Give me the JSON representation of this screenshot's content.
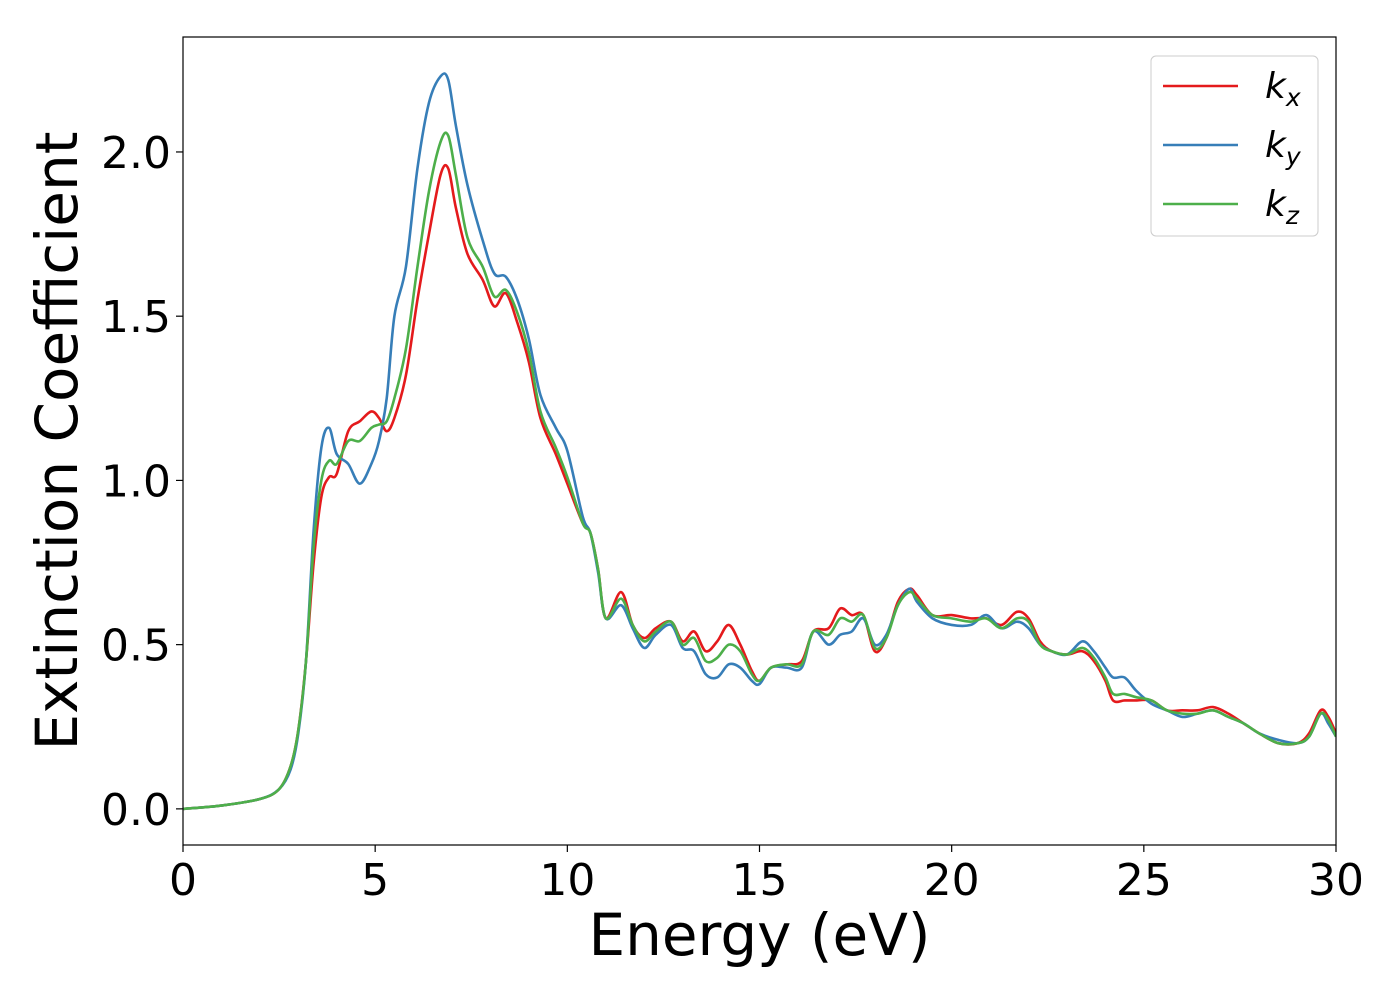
{
  "chart_data": {
    "type": "line",
    "title": "",
    "xlabel": "Energy (eV)",
    "ylabel": "Extinction Coefficient",
    "xlim": [
      0,
      30
    ],
    "ylim": [
      -0.11,
      2.35
    ],
    "xticks": [
      0,
      5,
      10,
      15,
      20,
      25,
      30
    ],
    "yticks": [
      0.0,
      0.5,
      1.0,
      1.5,
      2.0
    ],
    "xtick_labels": [
      "0",
      "5",
      "10",
      "15",
      "20",
      "25",
      "30"
    ],
    "ytick_labels": [
      "0.0",
      "0.5",
      "1.0",
      "1.5",
      "2.0"
    ],
    "grid": false,
    "legend_position": "top-right",
    "series": [
      {
        "name": "k_x",
        "label_base": "k",
        "label_sub": "x",
        "color": "#e41a1c",
        "x": [
          0,
          1,
          2,
          2.5,
          2.8,
          3.0,
          3.2,
          3.4,
          3.6,
          3.8,
          4.0,
          4.3,
          4.6,
          4.9,
          5.1,
          5.3,
          5.5,
          5.8,
          6.1,
          6.4,
          6.7,
          6.9,
          7.1,
          7.4,
          7.8,
          8.1,
          8.4,
          8.7,
          9.0,
          9.3,
          9.7,
          10.0,
          10.4,
          10.6,
          10.8,
          11.0,
          11.4,
          11.7,
          12.0,
          12.3,
          12.7,
          13.0,
          13.3,
          13.6,
          13.9,
          14.2,
          14.5,
          14.8,
          15.0,
          15.3,
          15.7,
          16.1,
          16.4,
          16.8,
          17.1,
          17.4,
          17.7,
          18.0,
          18.3,
          18.6,
          18.9,
          19.1,
          19.5,
          20.0,
          20.5,
          20.9,
          21.3,
          21.7,
          22.0,
          22.3,
          22.6,
          23.0,
          23.4,
          23.7,
          24.0,
          24.2,
          24.5,
          24.8,
          25.2,
          25.6,
          26.0,
          26.4,
          26.8,
          27.2,
          27.6,
          28.0,
          28.5,
          29.0,
          29.3,
          29.6,
          29.8,
          30.0
        ],
        "y": [
          0.0,
          0.01,
          0.03,
          0.06,
          0.13,
          0.24,
          0.45,
          0.75,
          0.95,
          1.01,
          1.02,
          1.15,
          1.18,
          1.21,
          1.19,
          1.15,
          1.19,
          1.32,
          1.55,
          1.75,
          1.93,
          1.95,
          1.83,
          1.69,
          1.61,
          1.53,
          1.57,
          1.48,
          1.36,
          1.19,
          1.08,
          0.99,
          0.87,
          0.84,
          0.73,
          0.58,
          0.66,
          0.56,
          0.52,
          0.55,
          0.57,
          0.51,
          0.54,
          0.48,
          0.51,
          0.56,
          0.5,
          0.42,
          0.39,
          0.43,
          0.44,
          0.45,
          0.54,
          0.55,
          0.61,
          0.59,
          0.59,
          0.48,
          0.52,
          0.63,
          0.67,
          0.65,
          0.59,
          0.59,
          0.58,
          0.58,
          0.56,
          0.6,
          0.58,
          0.51,
          0.48,
          0.47,
          0.48,
          0.45,
          0.39,
          0.33,
          0.33,
          0.33,
          0.33,
          0.3,
          0.3,
          0.3,
          0.31,
          0.29,
          0.26,
          0.23,
          0.2,
          0.2,
          0.23,
          0.3,
          0.28,
          0.23
        ]
      },
      {
        "name": "k_y",
        "label_base": "k",
        "label_sub": "y",
        "color": "#377eb8",
        "x": [
          0,
          1,
          2,
          2.5,
          2.8,
          3.0,
          3.2,
          3.4,
          3.6,
          3.8,
          4.0,
          4.3,
          4.6,
          4.9,
          5.1,
          5.3,
          5.5,
          5.8,
          6.1,
          6.4,
          6.7,
          6.9,
          7.1,
          7.4,
          7.8,
          8.1,
          8.4,
          8.7,
          9.0,
          9.3,
          9.7,
          10.0,
          10.4,
          10.6,
          10.8,
          11.0,
          11.4,
          11.7,
          12.0,
          12.3,
          12.7,
          13.0,
          13.3,
          13.6,
          13.9,
          14.2,
          14.5,
          14.8,
          15.0,
          15.3,
          15.7,
          16.1,
          16.4,
          16.8,
          17.1,
          17.4,
          17.7,
          18.0,
          18.3,
          18.6,
          18.9,
          19.1,
          19.5,
          20.0,
          20.5,
          20.9,
          21.3,
          21.7,
          22.0,
          22.3,
          22.6,
          23.0,
          23.4,
          23.7,
          24.0,
          24.2,
          24.5,
          24.8,
          25.2,
          25.6,
          26.0,
          26.4,
          26.8,
          27.2,
          27.6,
          28.0,
          28.5,
          29.0,
          29.3,
          29.6,
          29.8,
          30.0
        ],
        "y": [
          0.0,
          0.01,
          0.03,
          0.06,
          0.12,
          0.23,
          0.45,
          0.85,
          1.1,
          1.16,
          1.08,
          1.05,
          0.99,
          1.05,
          1.12,
          1.25,
          1.5,
          1.65,
          1.95,
          2.15,
          2.23,
          2.22,
          2.08,
          1.9,
          1.73,
          1.63,
          1.62,
          1.55,
          1.43,
          1.26,
          1.16,
          1.09,
          0.89,
          0.84,
          0.72,
          0.58,
          0.62,
          0.55,
          0.49,
          0.53,
          0.56,
          0.49,
          0.48,
          0.41,
          0.4,
          0.44,
          0.43,
          0.39,
          0.38,
          0.43,
          0.43,
          0.43,
          0.54,
          0.5,
          0.53,
          0.54,
          0.58,
          0.5,
          0.53,
          0.62,
          0.67,
          0.63,
          0.58,
          0.56,
          0.56,
          0.59,
          0.55,
          0.57,
          0.55,
          0.5,
          0.48,
          0.47,
          0.51,
          0.48,
          0.43,
          0.4,
          0.4,
          0.36,
          0.32,
          0.3,
          0.28,
          0.29,
          0.3,
          0.28,
          0.26,
          0.23,
          0.21,
          0.2,
          0.22,
          0.29,
          0.26,
          0.22
        ]
      },
      {
        "name": "k_z",
        "label_base": "k",
        "label_sub": "z",
        "color": "#4daf4a",
        "x": [
          0,
          1,
          2,
          2.5,
          2.8,
          3.0,
          3.2,
          3.4,
          3.6,
          3.8,
          4.0,
          4.3,
          4.6,
          4.9,
          5.1,
          5.3,
          5.5,
          5.8,
          6.1,
          6.4,
          6.7,
          6.9,
          7.1,
          7.4,
          7.8,
          8.1,
          8.4,
          8.7,
          9.0,
          9.3,
          9.7,
          10.0,
          10.4,
          10.6,
          10.8,
          11.0,
          11.4,
          11.7,
          12.0,
          12.3,
          12.7,
          13.0,
          13.3,
          13.6,
          13.9,
          14.2,
          14.5,
          14.8,
          15.0,
          15.3,
          15.7,
          16.1,
          16.4,
          16.8,
          17.1,
          17.4,
          17.7,
          18.0,
          18.3,
          18.6,
          18.9,
          19.1,
          19.5,
          20.0,
          20.5,
          20.9,
          21.3,
          21.7,
          22.0,
          22.3,
          22.6,
          23.0,
          23.4,
          23.7,
          24.0,
          24.2,
          24.5,
          24.8,
          25.2,
          25.6,
          26.0,
          26.4,
          26.8,
          27.2,
          27.6,
          28.0,
          28.5,
          29.0,
          29.3,
          29.6,
          29.8,
          30.0
        ],
        "y": [
          0.0,
          0.01,
          0.03,
          0.06,
          0.13,
          0.24,
          0.45,
          0.8,
          1.0,
          1.06,
          1.05,
          1.12,
          1.12,
          1.16,
          1.17,
          1.18,
          1.25,
          1.4,
          1.65,
          1.88,
          2.03,
          2.05,
          1.93,
          1.74,
          1.65,
          1.56,
          1.58,
          1.51,
          1.39,
          1.21,
          1.1,
          1.01,
          0.87,
          0.84,
          0.73,
          0.58,
          0.64,
          0.56,
          0.51,
          0.54,
          0.57,
          0.5,
          0.52,
          0.45,
          0.46,
          0.5,
          0.48,
          0.41,
          0.39,
          0.43,
          0.44,
          0.44,
          0.54,
          0.53,
          0.58,
          0.57,
          0.59,
          0.49,
          0.52,
          0.62,
          0.66,
          0.64,
          0.59,
          0.58,
          0.57,
          0.58,
          0.55,
          0.58,
          0.57,
          0.5,
          0.48,
          0.47,
          0.49,
          0.46,
          0.4,
          0.35,
          0.35,
          0.34,
          0.33,
          0.3,
          0.29,
          0.29,
          0.3,
          0.28,
          0.26,
          0.23,
          0.2,
          0.2,
          0.22,
          0.29,
          0.27,
          0.22
        ]
      }
    ]
  }
}
